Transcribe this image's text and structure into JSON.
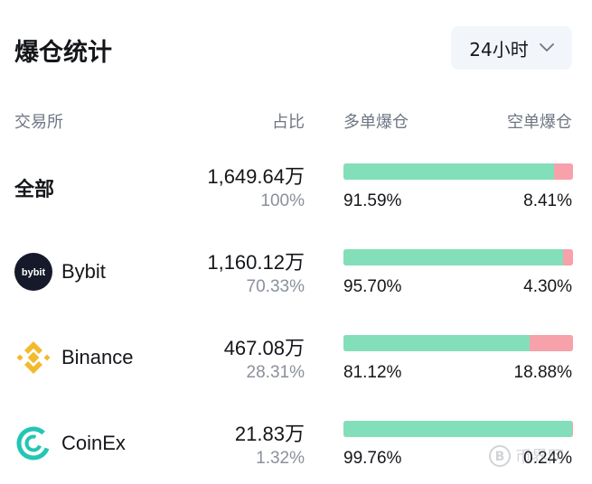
{
  "header": {
    "title": "爆仓统计",
    "range": "24小时"
  },
  "columns": {
    "exchange": "交易所",
    "share": "占比",
    "long": "多单爆仓",
    "short": "空单爆仓"
  },
  "rows": [
    {
      "exchange": "全部",
      "amount": "1,649.64",
      "unit": "万",
      "share": "100%",
      "long_pct": "91.59%",
      "short_pct": "8.41%",
      "long_fraction": 0.9159
    },
    {
      "exchange": "Bybit",
      "logo_text": "bybit",
      "amount": "1,160.12",
      "unit": "万",
      "share": "70.33%",
      "long_pct": "95.70%",
      "short_pct": "4.30%",
      "long_fraction": 0.957
    },
    {
      "exchange": "Binance",
      "amount": "467.08",
      "unit": "万",
      "share": "28.31%",
      "long_pct": "81.12%",
      "short_pct": "18.88%",
      "long_fraction": 0.8112
    },
    {
      "exchange": "CoinEx",
      "amount": "21.83",
      "unit": "万",
      "share": "1.32%",
      "long_pct": "99.76%",
      "short_pct": "0.24%",
      "long_fraction": 0.9976
    }
  ],
  "icons": {
    "dropdown": "chevron-down-icon",
    "bybit": "bybit-logo-icon",
    "binance": "binance-logo-icon",
    "coinex": "coinex-logo-icon"
  },
  "colors": {
    "long": "#83dfb9",
    "short": "#f7a1ab",
    "binance": "#f3ba2f",
    "coinex": "#25c5b4",
    "bybit_bg": "#15192a",
    "bybit_accent": "#f7a600"
  },
  "watermark": {
    "text": "币界网"
  }
}
